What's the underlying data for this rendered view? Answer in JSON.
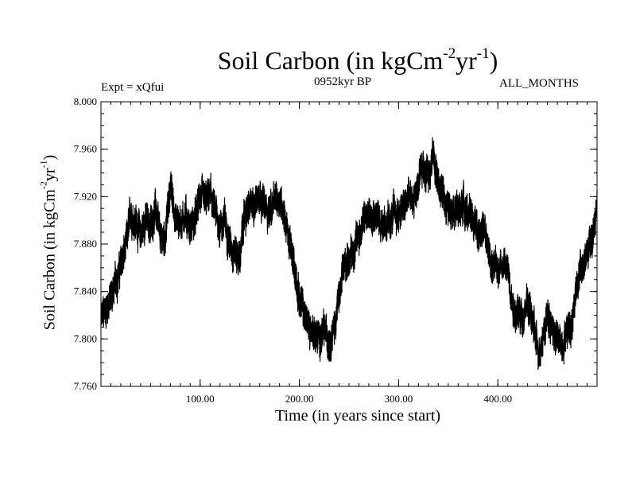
{
  "chart_data": {
    "type": "line",
    "title": {
      "main": "Soil Carbon (in kgCm",
      "exp1": "-2",
      "mid": "yr",
      "exp2": "-1",
      "end": ")"
    },
    "subtitle_left": "Expt = xQfui",
    "subtitle_center": "0952kyr BP",
    "subtitle_right": "ALL_MONTHS",
    "ylabel": {
      "main": "Soil Carbon (in kgCm",
      "exp1": "-2",
      "mid": "yr",
      "exp2": "-1",
      "end": ")"
    },
    "xlabel": "Time (in years since start)",
    "xlim": [
      0,
      500
    ],
    "ylim": [
      7.76,
      8.0
    ],
    "x_ticks": [
      100,
      200,
      300,
      400
    ],
    "x_tick_labels": [
      "100.00",
      "200.00",
      "300.00",
      "400.00"
    ],
    "y_ticks": [
      7.76,
      7.8,
      7.84,
      7.88,
      7.92,
      7.96,
      8.0
    ],
    "y_tick_labels": [
      "7.760",
      "7.800",
      "7.840",
      "7.880",
      "7.920",
      "7.960",
      "8.000"
    ],
    "grid": false,
    "line_color": "#000000",
    "series": [
      {
        "name": "Soil Carbon",
        "x": [
          0,
          5,
          10,
          15,
          20,
          25,
          30,
          35,
          40,
          45,
          50,
          55,
          60,
          65,
          70,
          75,
          80,
          85,
          90,
          95,
          100,
          105,
          110,
          115,
          120,
          125,
          130,
          135,
          140,
          145,
          150,
          155,
          160,
          165,
          170,
          175,
          180,
          185,
          190,
          195,
          200,
          205,
          210,
          215,
          220,
          225,
          230,
          235,
          240,
          245,
          250,
          255,
          260,
          265,
          270,
          275,
          280,
          285,
          290,
          295,
          300,
          305,
          310,
          315,
          320,
          325,
          330,
          335,
          340,
          345,
          350,
          355,
          360,
          365,
          370,
          375,
          380,
          385,
          390,
          395,
          400,
          405,
          410,
          415,
          420,
          425,
          430,
          435,
          440,
          445,
          450,
          455,
          460,
          465,
          470,
          475,
          480,
          485,
          490,
          495,
          500
        ],
        "y": [
          7.815,
          7.825,
          7.835,
          7.848,
          7.862,
          7.876,
          7.905,
          7.9,
          7.888,
          7.902,
          7.895,
          7.91,
          7.882,
          7.888,
          7.93,
          7.902,
          7.898,
          7.906,
          7.894,
          7.9,
          7.92,
          7.914,
          7.922,
          7.905,
          7.895,
          7.9,
          7.88,
          7.875,
          7.868,
          7.905,
          7.91,
          7.915,
          7.925,
          7.91,
          7.908,
          7.915,
          7.92,
          7.905,
          7.88,
          7.86,
          7.835,
          7.82,
          7.81,
          7.805,
          7.8,
          7.806,
          7.8,
          7.81,
          7.835,
          7.86,
          7.87,
          7.875,
          7.888,
          7.9,
          7.905,
          7.91,
          7.9,
          7.9,
          7.895,
          7.906,
          7.905,
          7.91,
          7.92,
          7.915,
          7.93,
          7.945,
          7.94,
          7.955,
          7.93,
          7.92,
          7.91,
          7.915,
          7.905,
          7.915,
          7.905,
          7.9,
          7.892,
          7.895,
          7.875,
          7.86,
          7.86,
          7.865,
          7.858,
          7.83,
          7.82,
          7.82,
          7.83,
          7.815,
          7.79,
          7.8,
          7.82,
          7.808,
          7.8,
          7.795,
          7.81,
          7.815,
          7.85,
          7.86,
          7.87,
          7.885,
          7.91
        ]
      }
    ]
  }
}
